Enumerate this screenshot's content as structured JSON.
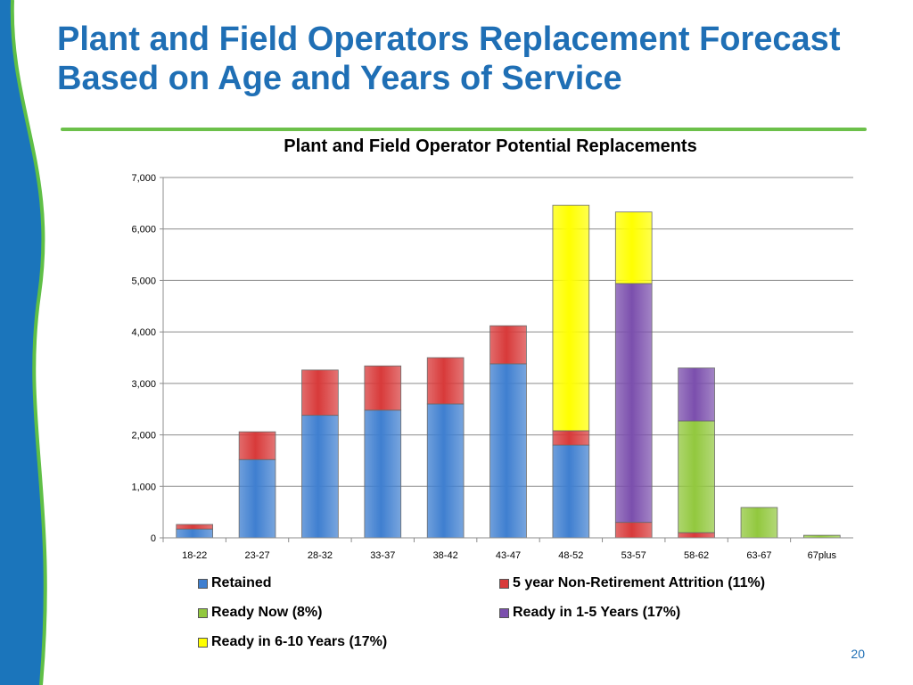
{
  "slide": {
    "title_line1": "Plant and Field Operators Replacement Forecast",
    "title_line2": "Based on Age and Years of Service",
    "page_number": "20",
    "colors": {
      "title": "#1f6fb5",
      "rule": "#6cc04a",
      "decor_blue": "#1b75bb",
      "decor_green": "#5fbf46"
    }
  },
  "chart_data": {
    "type": "bar",
    "stacked": true,
    "title": "Plant and Field Operator Potential Replacements",
    "xlabel": "",
    "ylabel": "",
    "ylim": [
      0,
      7000
    ],
    "yticks": [
      0,
      1000,
      2000,
      3000,
      4000,
      5000,
      6000,
      7000
    ],
    "ytick_labels": [
      "0",
      "1,000",
      "2,000",
      "3,000",
      "4,000",
      "5,000",
      "6,000",
      "7,000"
    ],
    "grid": true,
    "legend_position": "bottom",
    "categories": [
      "18-22",
      "23-27",
      "28-32",
      "33-37",
      "38-42",
      "43-47",
      "48-52",
      "53-57",
      "58-62",
      "63-67",
      "67plus"
    ],
    "series": [
      {
        "name": "Retained",
        "color": "#3f7fd0",
        "values": [
          170,
          1520,
          2380,
          2480,
          2600,
          3380,
          1800,
          0,
          0,
          0,
          0
        ]
      },
      {
        "name": "5 year Non-Retirement Attrition (11%)",
        "color": "#d83a3a",
        "values": [
          90,
          540,
          880,
          860,
          900,
          740,
          280,
          300,
          100,
          0,
          0
        ]
      },
      {
        "name": "Ready Now (8%)",
        "color": "#92c83e",
        "values": [
          0,
          0,
          0,
          0,
          0,
          0,
          0,
          0,
          2170,
          590,
          50
        ]
      },
      {
        "name": "Ready in 1-5 Years (17%)",
        "color": "#7b4fad",
        "values": [
          0,
          0,
          0,
          0,
          0,
          0,
          0,
          4640,
          1030,
          0,
          0
        ]
      },
      {
        "name": "Ready in 6-10 Years (17%)",
        "color": "#ffff00",
        "values": [
          0,
          0,
          0,
          0,
          0,
          0,
          4380,
          1390,
          0,
          0,
          0
        ]
      }
    ]
  }
}
